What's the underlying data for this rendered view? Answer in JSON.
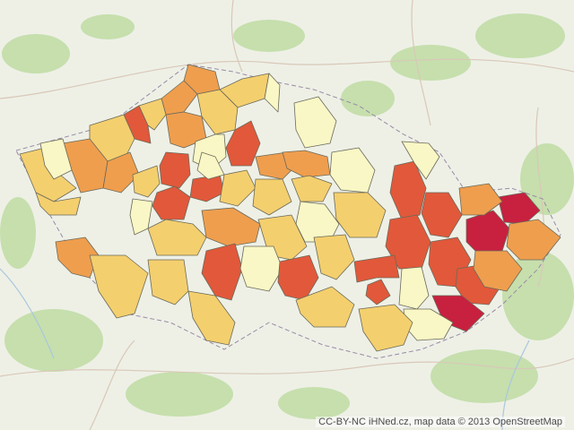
{
  "attribution": "CC-BY-NC iHNed.cz, map data © 2013  OpenStreetMap",
  "legend_colors": {
    "very_low": "#f9f7c5",
    "low": "#f4cf6e",
    "medium": "#ef9e4e",
    "high": "#e2583a",
    "very_high": "#c8203f"
  },
  "basemap_colors": {
    "background": "#eef0e6",
    "forest": "#b8d99a",
    "roads": "#d9c8b8",
    "water": "#aac7dd",
    "country_border": "#9a8aa6"
  },
  "districts": [
    {
      "level": "medium"
    },
    {
      "level": "low"
    },
    {
      "level": "very_low"
    },
    {
      "level": "medium"
    },
    {
      "level": "high"
    },
    {
      "level": "low"
    },
    {
      "level": "medium"
    },
    {
      "level": "low"
    },
    {
      "level": "very_low"
    },
    {
      "level": "high"
    },
    {
      "level": "low"
    },
    {
      "level": "low"
    },
    {
      "level": "medium"
    },
    {
      "level": "low"
    },
    {
      "level": "very_low"
    },
    {
      "level": "medium"
    },
    {
      "level": "high"
    },
    {
      "level": "high"
    },
    {
      "level": "low"
    },
    {
      "level": "very_low"
    },
    {
      "level": "high"
    },
    {
      "level": "very_low"
    },
    {
      "level": "low"
    },
    {
      "level": "medium"
    },
    {
      "level": "medium"
    },
    {
      "level": "low"
    },
    {
      "level": "low"
    },
    {
      "level": "very_low"
    },
    {
      "level": "very_low"
    },
    {
      "level": "low"
    },
    {
      "level": "medium"
    },
    {
      "level": "low"
    },
    {
      "level": "very_low"
    },
    {
      "level": "low"
    },
    {
      "level": "medium"
    },
    {
      "level": "high"
    },
    {
      "level": "very_low"
    },
    {
      "level": "high"
    },
    {
      "level": "low"
    },
    {
      "level": "low"
    },
    {
      "level": "low"
    },
    {
      "level": "low"
    },
    {
      "level": "high"
    },
    {
      "level": "high"
    },
    {
      "level": "very_low"
    },
    {
      "level": "high"
    },
    {
      "level": "very_high"
    },
    {
      "level": "very_high"
    },
    {
      "level": "medium"
    },
    {
      "level": "medium"
    },
    {
      "level": "high"
    },
    {
      "level": "high"
    },
    {
      "level": "very_high"
    },
    {
      "level": "very_low"
    },
    {
      "level": "high"
    },
    {
      "level": "very_low"
    },
    {
      "level": "medium"
    },
    {
      "level": "high"
    },
    {
      "level": "low"
    },
    {
      "level": "low"
    }
  ]
}
